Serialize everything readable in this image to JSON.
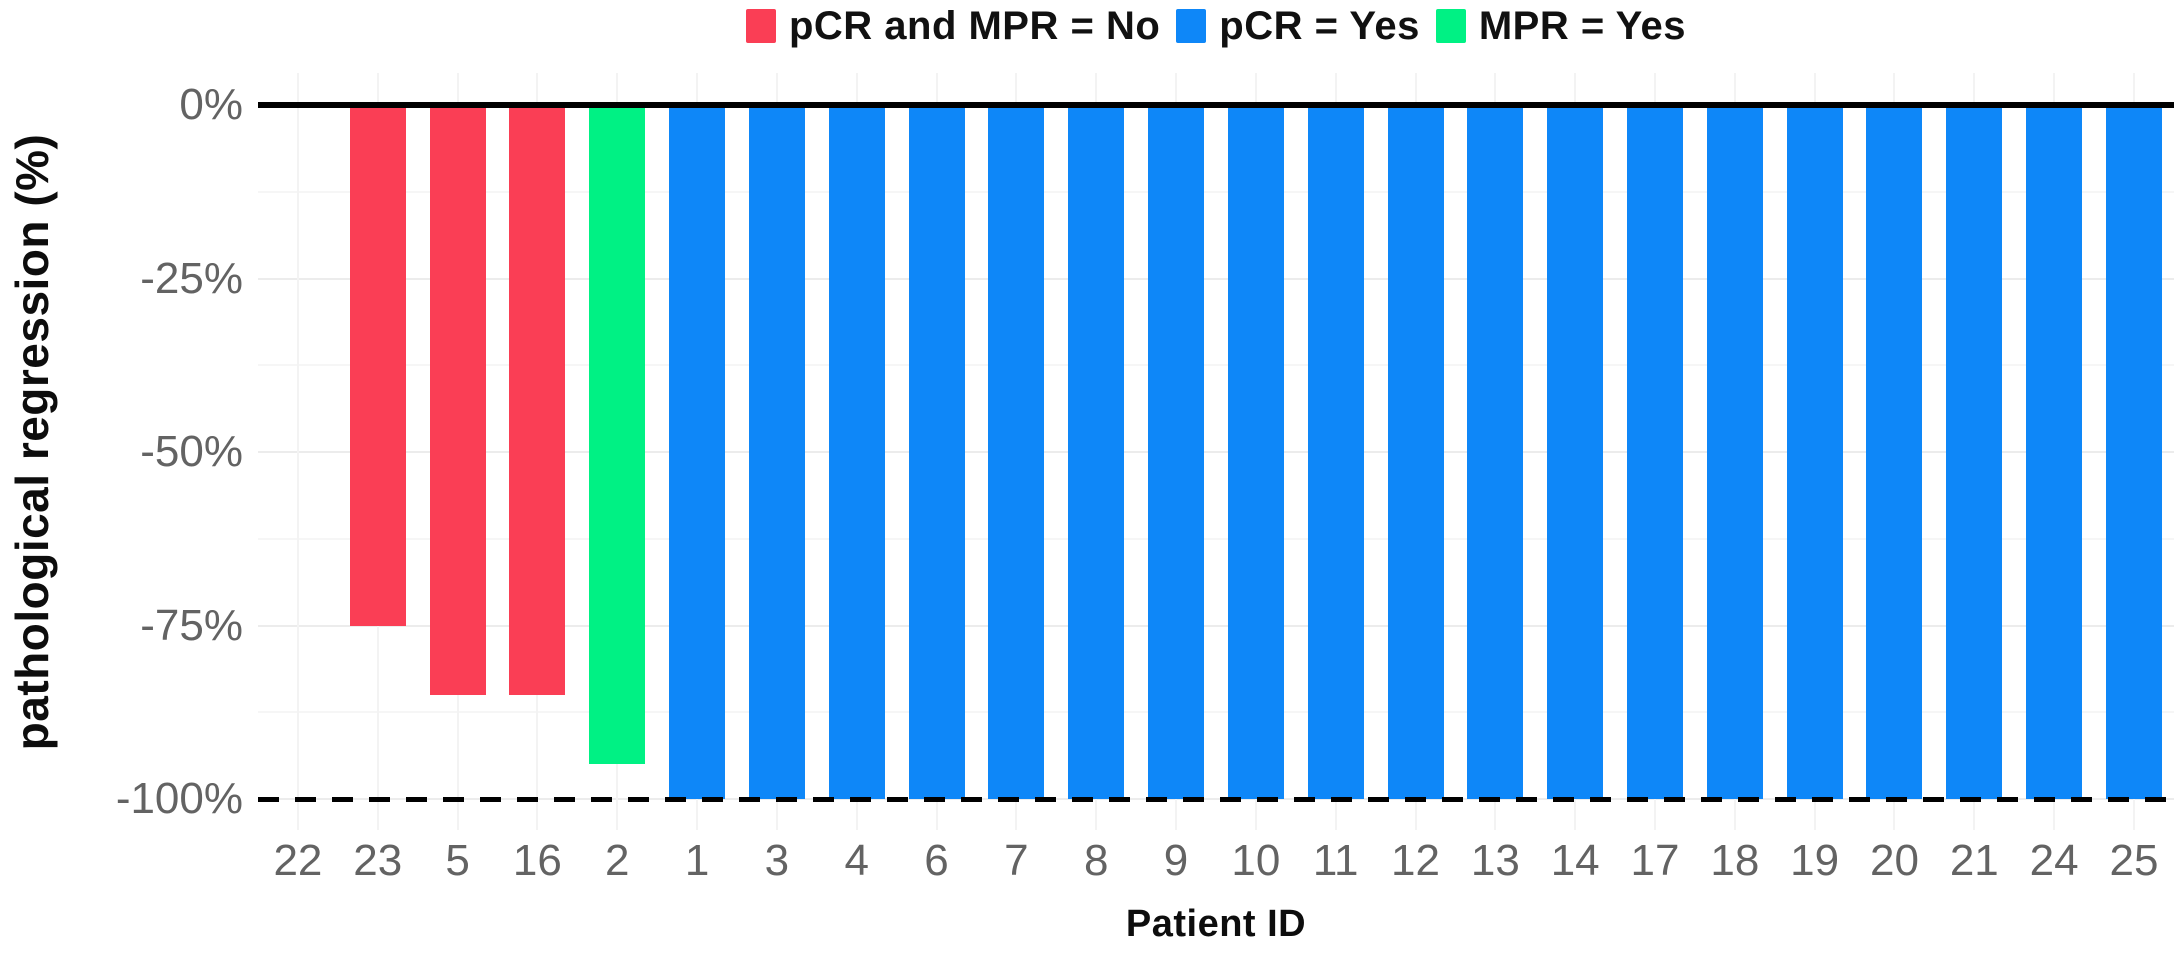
{
  "legend": {
    "items": [
      {
        "label": "pCR and MPR = No",
        "color": "#FA3E55"
      },
      {
        "label": "pCR = Yes",
        "color": "#0E87F8"
      },
      {
        "label": "MPR = Yes",
        "color": "#00F184"
      }
    ]
  },
  "chart_data": {
    "type": "bar",
    "title": "",
    "xlabel": "Patient ID",
    "ylabel": "pathological regression (%)",
    "ylim": [
      -100,
      0
    ],
    "grid": "on",
    "legend_position": "top-center",
    "yticks": [
      {
        "label": "0%",
        "value": 0
      },
      {
        "label": "-25%",
        "value": -25
      },
      {
        "label": "-50%",
        "value": -50
      },
      {
        "label": "-75%",
        "value": -75
      },
      {
        "label": "-100%",
        "value": -100
      }
    ],
    "minor_grid_step": 12.5,
    "reference_lines": [
      {
        "value": 0,
        "style": "solid"
      },
      {
        "value": -100,
        "style": "dashed"
      }
    ],
    "group_colors": {
      "pCR and MPR = No": "#FA3E55",
      "pCR = Yes": "#0E87F8",
      "MPR = Yes": "#00F184"
    },
    "categories": [
      "22",
      "23",
      "5",
      "16",
      "2",
      "1",
      "3",
      "4",
      "6",
      "7",
      "8",
      "9",
      "10",
      "11",
      "12",
      "13",
      "14",
      "17",
      "18",
      "19",
      "20",
      "21",
      "24",
      "25"
    ],
    "points": [
      {
        "patient": "22",
        "value": 0,
        "group": null
      },
      {
        "patient": "23",
        "value": -75,
        "group": "pCR and MPR = No"
      },
      {
        "patient": "5",
        "value": -85,
        "group": "pCR and MPR = No"
      },
      {
        "patient": "16",
        "value": -85,
        "group": "pCR and MPR = No"
      },
      {
        "patient": "2",
        "value": -95,
        "group": "MPR = Yes"
      },
      {
        "patient": "1",
        "value": -100,
        "group": "pCR = Yes"
      },
      {
        "patient": "3",
        "value": -100,
        "group": "pCR = Yes"
      },
      {
        "patient": "4",
        "value": -100,
        "group": "pCR = Yes"
      },
      {
        "patient": "6",
        "value": -100,
        "group": "pCR = Yes"
      },
      {
        "patient": "7",
        "value": -100,
        "group": "pCR = Yes"
      },
      {
        "patient": "8",
        "value": -100,
        "group": "pCR = Yes"
      },
      {
        "patient": "9",
        "value": -100,
        "group": "pCR = Yes"
      },
      {
        "patient": "10",
        "value": -100,
        "group": "pCR = Yes"
      },
      {
        "patient": "11",
        "value": -100,
        "group": "pCR = Yes"
      },
      {
        "patient": "12",
        "value": -100,
        "group": "pCR = Yes"
      },
      {
        "patient": "13",
        "value": -100,
        "group": "pCR = Yes"
      },
      {
        "patient": "14",
        "value": -100,
        "group": "pCR = Yes"
      },
      {
        "patient": "17",
        "value": -100,
        "group": "pCR = Yes"
      },
      {
        "patient": "18",
        "value": -100,
        "group": "pCR = Yes"
      },
      {
        "patient": "19",
        "value": -100,
        "group": "pCR = Yes"
      },
      {
        "patient": "20",
        "value": -100,
        "group": "pCR = Yes"
      },
      {
        "patient": "21",
        "value": -100,
        "group": "pCR = Yes"
      },
      {
        "patient": "24",
        "value": -100,
        "group": "pCR = Yes"
      },
      {
        "patient": "25",
        "value": -100,
        "group": "pCR = Yes"
      }
    ]
  }
}
